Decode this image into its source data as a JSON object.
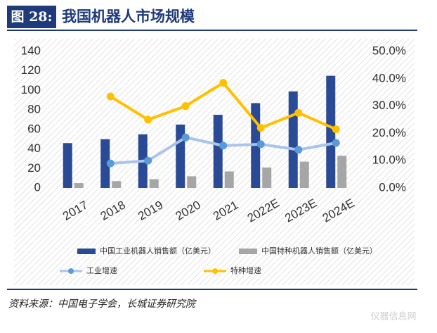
{
  "figure_label": "图 28:",
  "source": "资料来源：中国电子学会，长城证券研究院",
  "watermark": "仪器信息网",
  "chart_data": {
    "type": "bar-line",
    "title": "我国机器人市场规模",
    "categories": [
      "2017",
      "2018",
      "2019",
      "2020",
      "2021",
      "2022E",
      "2023E",
      "2024E"
    ],
    "series": [
      {
        "name": "中国工业机器人销售额（亿美元）",
        "type": "bar",
        "color": "#2b4a96",
        "values": [
          46,
          50,
          55,
          65,
          75,
          87,
          99,
          115
        ]
      },
      {
        "name": "中国特种机器人销售额（亿美元）",
        "type": "bar",
        "color": "#a6a6a6",
        "values": [
          5,
          7,
          9,
          12,
          17,
          21,
          27,
          33
        ]
      },
      {
        "name": "工业增速",
        "type": "line",
        "axis": "y2",
        "color": "#a9c4eb",
        "marker_color": "#5b9bd5",
        "values": [
          null,
          9.0,
          10.0,
          18.5,
          15.5,
          16.0,
          14.0,
          16.5
        ]
      },
      {
        "name": "特种增速",
        "type": "line",
        "axis": "y2",
        "color": "#ffc000",
        "marker_color": "#ffc000",
        "values": [
          null,
          33.5,
          25.0,
          30.0,
          38.5,
          22.0,
          27.5,
          21.5
        ]
      }
    ],
    "ylim": [
      0,
      140
    ],
    "yticks": [
      0,
      20,
      40,
      60,
      80,
      100,
      120,
      140
    ],
    "y2lim": [
      0,
      50
    ],
    "y2ticks": [
      {
        "value": 0,
        "label": "0.0%"
      },
      {
        "value": 10,
        "label": "10.0%"
      },
      {
        "value": 20,
        "label": "20.0%"
      },
      {
        "value": 30,
        "label": "30.0%"
      },
      {
        "value": 40,
        "label": "40.0%"
      },
      {
        "value": 50,
        "label": "50.0%"
      }
    ]
  }
}
